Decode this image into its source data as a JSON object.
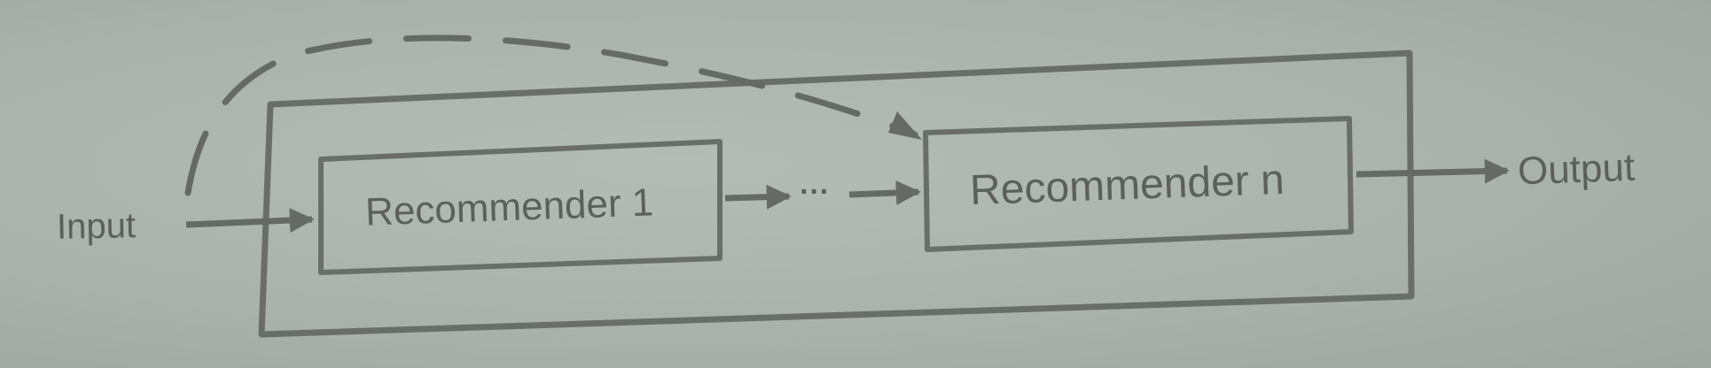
{
  "diagram": {
    "input_label": "Input",
    "recommender_first_label": "Recommender 1",
    "ellipsis_label": "···",
    "recommender_last_label": "Recommender n",
    "output_label": "Output",
    "colors": {
      "background": "#aab2ad",
      "stroke": "#666a67",
      "text": "#5c605d"
    }
  }
}
